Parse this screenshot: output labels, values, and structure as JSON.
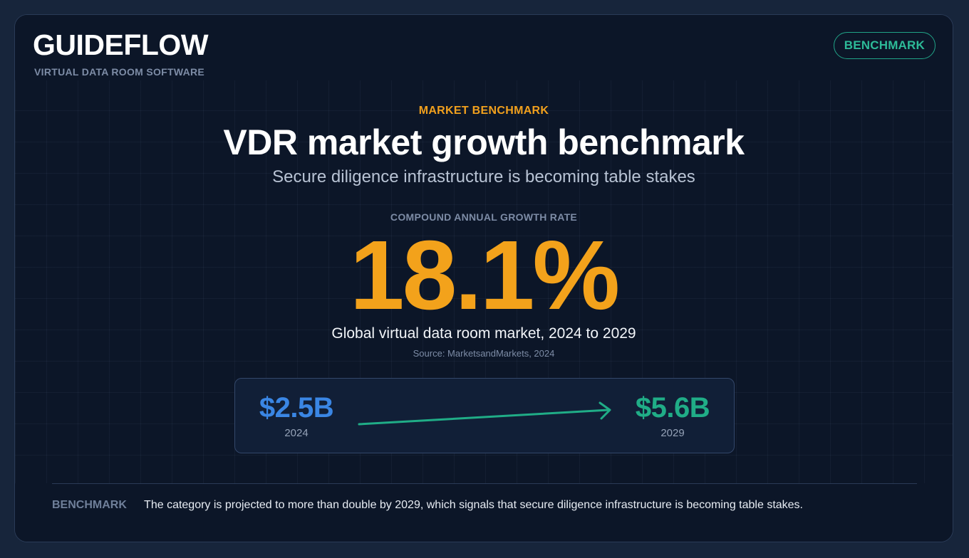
{
  "brand": {
    "name": "GUIDEFLOW",
    "subtitle": "VIRTUAL DATA ROOM SOFTWARE"
  },
  "badge": "BENCHMARK",
  "eyebrow": "MARKET BENCHMARK",
  "title": "VDR market growth benchmark",
  "subtitle": "Secure diligence infrastructure is becoming table stakes",
  "metric": {
    "label": "COMPOUND ANNUAL GROWTH RATE",
    "value": "18.1%",
    "caption": "Global virtual data room market, 2024 to 2029",
    "source": "Source: MarketsandMarkets, 2024"
  },
  "growth": {
    "start": {
      "amount": "$2.5B",
      "year": "2024"
    },
    "end": {
      "amount": "$5.6B",
      "year": "2029"
    }
  },
  "footer": {
    "label": "BENCHMARK",
    "text": "The category is projected to more than double by 2029, which signals that secure diligence infrastructure is becoming table stakes."
  },
  "colors": {
    "accent_orange": "#f3a21b",
    "start_blue": "#3a86e4",
    "end_green": "#20ad87",
    "background": "#0c1628"
  }
}
